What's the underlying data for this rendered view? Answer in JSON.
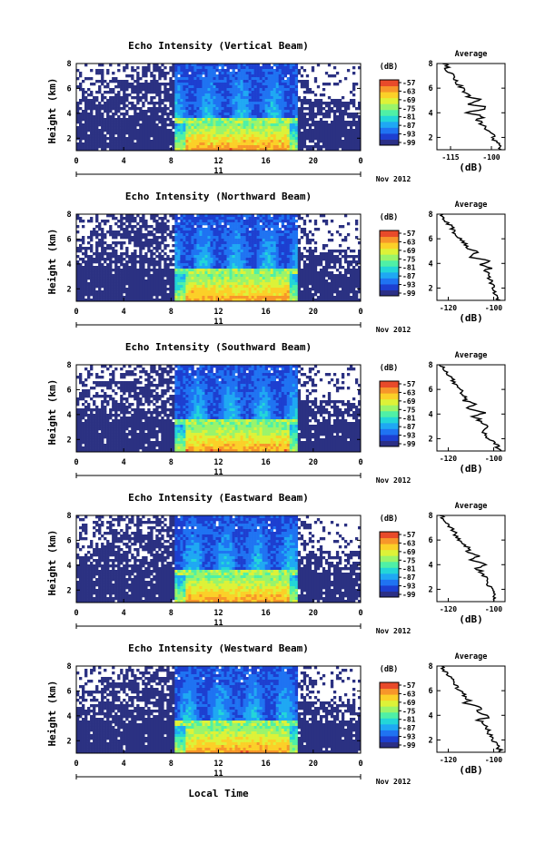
{
  "colors": {
    "background_low": "#2b3182",
    "colormap": [
      "#2b2f86",
      "#1d3fd0",
      "#1f73f2",
      "#1fa8f3",
      "#23d6d8",
      "#4ff0a6",
      "#9af46a",
      "#ddf238",
      "#fbd028",
      "#f7962a",
      "#e84a2a"
    ]
  },
  "chart_data": [
    {
      "type": "heatmap",
      "title": "Echo Intensity (Vertical Beam)",
      "ylabel": "Height (km)",
      "x_ticks": [
        "0",
        "4",
        "8",
        "12",
        "16",
        "20",
        "0"
      ],
      "day_label": "11",
      "month_label": "Nov 2012",
      "xlim": [
        0,
        24
      ],
      "ylim": [
        1,
        8
      ],
      "y_ticks": [
        "2",
        "4",
        "6",
        "8"
      ],
      "colorbar": {
        "unit": "(dB)",
        "ticks": [
          "-57",
          "-63",
          "-69",
          "-75",
          "-81",
          "-87",
          "-93",
          "-99"
        ]
      },
      "average_profile": {
        "title": "Average",
        "xlabel": "(dB)",
        "x_ticks": [
          "-115",
          "-100"
        ],
        "xlim": [
          -120,
          -95
        ],
        "y_ticks": [
          "2",
          "4",
          "6",
          "8"
        ],
        "heights": [
          1,
          1.5,
          2,
          2.5,
          3,
          3.5,
          4,
          4.5,
          5,
          5.5,
          6,
          6.5,
          7,
          7.5,
          8
        ],
        "values": [
          -97,
          -98,
          -99,
          -101,
          -103,
          -105,
          -106,
          -104,
          -107,
          -109,
          -111,
          -113,
          -114,
          -116,
          -117
        ]
      }
    },
    {
      "type": "heatmap",
      "title": "Echo Intensity (Northward Beam)",
      "ylabel": "Height (km)",
      "x_ticks": [
        "0",
        "4",
        "8",
        "12",
        "16",
        "20",
        "0"
      ],
      "day_label": "11",
      "month_label": "Nov 2012",
      "xlim": [
        0,
        24
      ],
      "ylim": [
        1,
        8
      ],
      "y_ticks": [
        "2",
        "4",
        "6",
        "8"
      ],
      "colorbar": {
        "unit": "(dB)",
        "ticks": [
          "-57",
          "-63",
          "-69",
          "-75",
          "-81",
          "-87",
          "-93",
          "-99"
        ]
      },
      "average_profile": {
        "title": "Average",
        "xlabel": "(dB)",
        "x_ticks": [
          "-120",
          "-100"
        ],
        "xlim": [
          -125,
          -95
        ],
        "y_ticks": [
          "2",
          "4",
          "6",
          "8"
        ],
        "heights": [
          1,
          1.5,
          2,
          2.5,
          3,
          3.5,
          4,
          4.5,
          5,
          5.5,
          6,
          6.5,
          7,
          7.5,
          8
        ],
        "values": [
          -98,
          -99,
          -100,
          -101,
          -102,
          -104,
          -103,
          -108,
          -110,
          -112,
          -115,
          -117,
          -119,
          -121,
          -123
        ]
      }
    },
    {
      "type": "heatmap",
      "title": "Echo Intensity (Southward Beam)",
      "ylabel": "Height (km)",
      "x_ticks": [
        "0",
        "4",
        "8",
        "12",
        "16",
        "20",
        "0"
      ],
      "day_label": "11",
      "month_label": "Nov 2012",
      "xlim": [
        0,
        24
      ],
      "ylim": [
        1,
        8
      ],
      "y_ticks": [
        "2",
        "4",
        "6",
        "8"
      ],
      "colorbar": {
        "unit": "(dB)",
        "ticks": [
          "-57",
          "-63",
          "-69",
          "-75",
          "-81",
          "-87",
          "-93",
          "-99"
        ]
      },
      "average_profile": {
        "title": "Average",
        "xlabel": "(dB)",
        "x_ticks": [
          "-120",
          "-100"
        ],
        "xlim": [
          -125,
          -95
        ],
        "y_ticks": [
          "2",
          "4",
          "6",
          "8"
        ],
        "heights": [
          1,
          1.5,
          2,
          2.5,
          3,
          3.5,
          4,
          4.5,
          5,
          5.5,
          6,
          6.5,
          7,
          7.5,
          8
        ],
        "values": [
          -97,
          -99,
          -102,
          -104,
          -103,
          -107,
          -106,
          -109,
          -111,
          -113,
          -115,
          -117,
          -119,
          -121,
          -123
        ]
      }
    },
    {
      "type": "heatmap",
      "title": "Echo Intensity (Eastward Beam)",
      "ylabel": "Height (km)",
      "x_ticks": [
        "0",
        "4",
        "8",
        "12",
        "16",
        "20",
        "0"
      ],
      "day_label": "11",
      "month_label": "Nov 2012",
      "xlim": [
        0,
        24
      ],
      "ylim": [
        1,
        8
      ],
      "y_ticks": [
        "2",
        "4",
        "6",
        "8"
      ],
      "colorbar": {
        "unit": "(dB)",
        "ticks": [
          "-57",
          "-63",
          "-69",
          "-75",
          "-81",
          "-87",
          "-93",
          "-99"
        ]
      },
      "average_profile": {
        "title": "Average",
        "xlabel": "(dB)",
        "x_ticks": [
          "-120",
          "-100"
        ],
        "xlim": [
          -125,
          -95
        ],
        "y_ticks": [
          "2",
          "4",
          "6",
          "8"
        ],
        "heights": [
          1,
          1.5,
          2,
          2.5,
          3,
          3.5,
          4,
          4.5,
          5,
          5.5,
          6,
          6.5,
          7,
          7.5,
          8
        ],
        "values": [
          -99,
          -100,
          -101,
          -103,
          -104,
          -106,
          -105,
          -108,
          -110,
          -112,
          -115,
          -117,
          -119,
          -121,
          -123
        ]
      }
    },
    {
      "type": "heatmap",
      "title": "Echo Intensity (Westward Beam)",
      "ylabel": "Height (km)",
      "x_ticks": [
        "0",
        "4",
        "8",
        "12",
        "16",
        "20",
        "0"
      ],
      "day_label": "11",
      "month_label": "Nov 2012",
      "xlim": [
        0,
        24
      ],
      "ylim": [
        1,
        8
      ],
      "y_ticks": [
        "2",
        "4",
        "6",
        "8"
      ],
      "colorbar": {
        "unit": "(dB)",
        "ticks": [
          "-57",
          "-63",
          "-69",
          "-75",
          "-81",
          "-87",
          "-93",
          "-99"
        ]
      },
      "average_profile": {
        "title": "Average",
        "xlabel": "(dB)",
        "x_ticks": [
          "-120",
          "-100"
        ],
        "xlim": [
          -125,
          -95
        ],
        "y_ticks": [
          "2",
          "4",
          "6",
          "8"
        ],
        "heights": [
          1,
          1.5,
          2,
          2.5,
          3,
          3.5,
          4,
          4.5,
          5,
          5.5,
          6,
          6.5,
          7,
          7.5,
          8
        ],
        "values": [
          -97,
          -98,
          -100,
          -102,
          -103,
          -105,
          -104,
          -107,
          -110,
          -112,
          -115,
          -117,
          -119,
          -121,
          -123
        ]
      }
    }
  ],
  "xlabel": "Local Time"
}
